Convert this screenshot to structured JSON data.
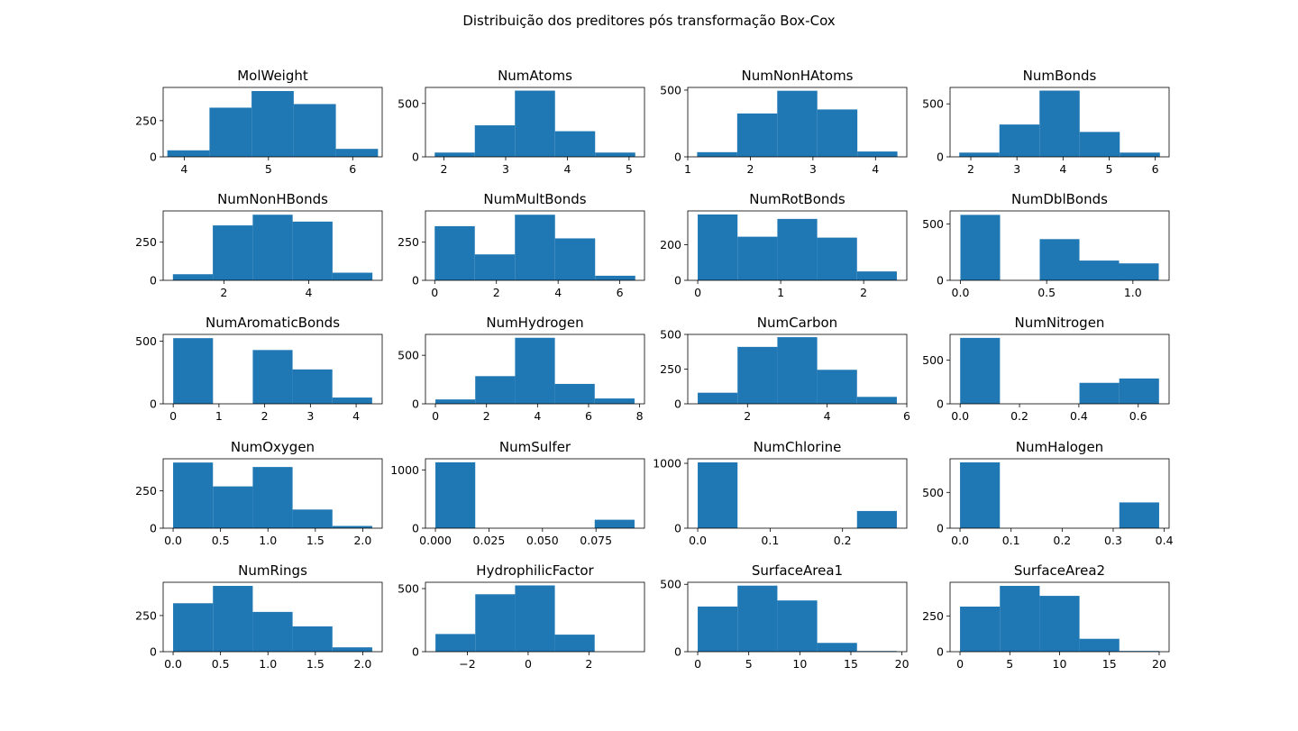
{
  "figure": {
    "title": "Distribuição dos preditores pós transformação Box-Cox",
    "bar_color": "#1f77b4"
  },
  "chart_data": [
    {
      "type": "bar",
      "title": "MolWeight",
      "edges": [
        3.8,
        4.3,
        4.8,
        5.3,
        5.8,
        6.3
      ],
      "values": [
        45,
        340,
        455,
        365,
        55
      ],
      "xlim": [
        3.75,
        6.35
      ],
      "ylim": [
        0,
        480
      ],
      "xticks": [
        4,
        5,
        6
      ],
      "xtick_labels": [
        "4",
        "5",
        "6"
      ],
      "yticks": [
        0,
        250
      ],
      "ytick_labels": [
        "0",
        "250"
      ]
    },
    {
      "type": "bar",
      "title": "NumAtoms",
      "edges": [
        1.85,
        2.5,
        3.15,
        3.8,
        4.45,
        5.1
      ],
      "values": [
        40,
        295,
        620,
        240,
        40
      ],
      "xlim": [
        1.7,
        5.25
      ],
      "ylim": [
        0,
        650
      ],
      "xticks": [
        2,
        3,
        4,
        5
      ],
      "xtick_labels": [
        "2",
        "3",
        "4",
        "5"
      ],
      "yticks": [
        0,
        500
      ],
      "ytick_labels": [
        "0",
        "500"
      ]
    },
    {
      "type": "bar",
      "title": "NumNonHAtoms",
      "edges": [
        1.15,
        1.79,
        2.43,
        3.07,
        3.71,
        4.35
      ],
      "values": [
        35,
        325,
        495,
        355,
        40
      ],
      "xlim": [
        1.0,
        4.5
      ],
      "ylim": [
        0,
        520
      ],
      "xticks": [
        1,
        2,
        3,
        4
      ],
      "xtick_labels": [
        "1",
        "2",
        "3",
        "4"
      ],
      "yticks": [
        0,
        500
      ],
      "ytick_labels": [
        "0",
        "500"
      ]
    },
    {
      "type": "bar",
      "title": "NumBonds",
      "edges": [
        1.75,
        2.62,
        3.49,
        4.36,
        5.23,
        6.1
      ],
      "values": [
        40,
        305,
        625,
        235,
        40
      ],
      "xlim": [
        1.55,
        6.3
      ],
      "ylim": [
        0,
        655
      ],
      "xticks": [
        2,
        3,
        4,
        5,
        6
      ],
      "xtick_labels": [
        "2",
        "3",
        "4",
        "5",
        "6"
      ],
      "yticks": [
        0,
        500
      ],
      "ytick_labels": [
        "0",
        "500"
      ]
    },
    {
      "type": "bar",
      "title": "NumNonHBonds",
      "edges": [
        0.8,
        1.74,
        2.68,
        3.62,
        4.56,
        5.5
      ],
      "values": [
        40,
        360,
        430,
        385,
        50
      ],
      "xlim": [
        0.57,
        5.73
      ],
      "ylim": [
        0,
        455
      ],
      "xticks": [
        2,
        4
      ],
      "xtick_labels": [
        "2",
        "4"
      ],
      "yticks": [
        0,
        250
      ],
      "ytick_labels": [
        "0",
        "250"
      ]
    },
    {
      "type": "bar",
      "title": "NumMultBonds",
      "edges": [
        0,
        1.3,
        2.6,
        3.9,
        5.2,
        6.5
      ],
      "values": [
        355,
        170,
        430,
        275,
        30
      ],
      "xlim": [
        -0.3,
        6.8
      ],
      "ylim": [
        0,
        455
      ],
      "xticks": [
        0,
        2,
        4,
        6
      ],
      "xtick_labels": [
        "0",
        "2",
        "4",
        "6"
      ],
      "yticks": [
        0,
        250
      ],
      "ytick_labels": [
        "0",
        "250"
      ]
    },
    {
      "type": "bar",
      "title": "NumRotBonds",
      "edges": [
        0,
        0.48,
        0.96,
        1.44,
        1.92,
        2.4
      ],
      "values": [
        370,
        245,
        345,
        240,
        50
      ],
      "xlim": [
        -0.12,
        2.52
      ],
      "ylim": [
        0,
        390
      ],
      "xticks": [
        0,
        1,
        2
      ],
      "xtick_labels": [
        "0",
        "1",
        "2"
      ],
      "yticks": [
        0,
        200
      ],
      "ytick_labels": [
        "0",
        "200"
      ]
    },
    {
      "type": "bar",
      "title": "NumDblBonds",
      "edges": [
        0,
        0.23,
        0.46,
        0.69,
        0.92,
        1.15
      ],
      "values": [
        580,
        0,
        365,
        175,
        150
      ],
      "xlim": [
        -0.06,
        1.21
      ],
      "ylim": [
        0,
        615
      ],
      "xticks": [
        0,
        0.5,
        1
      ],
      "xtick_labels": [
        "0.0",
        "0.5",
        "1.0"
      ],
      "yticks": [
        0,
        500
      ],
      "ytick_labels": [
        "0",
        "500"
      ]
    },
    {
      "type": "bar",
      "title": "NumAromaticBonds",
      "edges": [
        0,
        0.87,
        1.74,
        2.61,
        3.48,
        4.35
      ],
      "values": [
        525,
        0,
        430,
        275,
        50
      ],
      "xlim": [
        -0.22,
        4.57
      ],
      "ylim": [
        0,
        555
      ],
      "xticks": [
        0,
        1,
        2,
        3,
        4
      ],
      "xtick_labels": [
        "0",
        "1",
        "2",
        "3",
        "4"
      ],
      "yticks": [
        0,
        500
      ],
      "ytick_labels": [
        "0",
        "500"
      ]
    },
    {
      "type": "bar",
      "title": "NumHydrogen",
      "edges": [
        0,
        1.56,
        3.12,
        4.68,
        6.24,
        7.8
      ],
      "values": [
        45,
        285,
        680,
        205,
        55
      ],
      "xlim": [
        -0.39,
        8.19
      ],
      "ylim": [
        0,
        715
      ],
      "xticks": [
        0,
        2,
        4,
        6,
        8
      ],
      "xtick_labels": [
        "0",
        "2",
        "4",
        "6",
        "8"
      ],
      "yticks": [
        0,
        500
      ],
      "ytick_labels": [
        "0",
        "500"
      ]
    },
    {
      "type": "bar",
      "title": "NumCarbon",
      "edges": [
        0.75,
        1.75,
        2.75,
        3.75,
        4.75,
        5.75
      ],
      "values": [
        80,
        410,
        480,
        245,
        50
      ],
      "xlim": [
        0.5,
        6.0
      ],
      "ylim": [
        0,
        500
      ],
      "xticks": [
        2,
        4,
        6
      ],
      "xtick_labels": [
        "2",
        "4",
        "6"
      ],
      "yticks": [
        0,
        250,
        500
      ],
      "ytick_labels": [
        "0",
        "250",
        "500"
      ]
    },
    {
      "type": "bar",
      "title": "NumNitrogen",
      "edges": [
        0,
        0.134,
        0.268,
        0.402,
        0.536,
        0.67
      ],
      "values": [
        755,
        0,
        0,
        240,
        290
      ],
      "xlim": [
        -0.034,
        0.704
      ],
      "ylim": [
        0,
        795
      ],
      "xticks": [
        0,
        0.2,
        0.4,
        0.6
      ],
      "xtick_labels": [
        "0.0",
        "0.2",
        "0.4",
        "0.6"
      ],
      "yticks": [
        0,
        500
      ],
      "ytick_labels": [
        "0",
        "500"
      ]
    },
    {
      "type": "bar",
      "title": "NumOxygen",
      "edges": [
        0,
        0.42,
        0.84,
        1.26,
        1.68,
        2.1
      ],
      "values": [
        440,
        280,
        410,
        125,
        15
      ],
      "xlim": [
        -0.105,
        2.205
      ],
      "ylim": [
        0,
        465
      ],
      "xticks": [
        0,
        0.5,
        1,
        1.5,
        2
      ],
      "xtick_labels": [
        "0.0",
        "0.5",
        "1.0",
        "1.5",
        "2.0"
      ],
      "yticks": [
        0,
        250
      ],
      "ytick_labels": [
        "0",
        "250"
      ]
    },
    {
      "type": "bar",
      "title": "NumSulfer",
      "edges": [
        0,
        0.0186,
        0.0372,
        0.0558,
        0.0744,
        0.093
      ],
      "values": [
        1130,
        0,
        0,
        0,
        145
      ],
      "xlim": [
        -0.00465,
        0.09765
      ],
      "ylim": [
        0,
        1190
      ],
      "xticks": [
        0,
        0.025,
        0.05,
        0.075
      ],
      "xtick_labels": [
        "0.000",
        "0.025",
        "0.050",
        "0.075"
      ],
      "yticks": [
        0,
        1000
      ],
      "ytick_labels": [
        "0",
        "1000"
      ]
    },
    {
      "type": "bar",
      "title": "NumChlorine",
      "edges": [
        0,
        0.055,
        0.11,
        0.165,
        0.22,
        0.275
      ],
      "values": [
        1015,
        0,
        0,
        0,
        265
      ],
      "xlim": [
        -0.01375,
        0.28875
      ],
      "ylim": [
        0,
        1070
      ],
      "xticks": [
        0,
        0.1,
        0.2
      ],
      "xtick_labels": [
        "0.0",
        "0.1",
        "0.2"
      ],
      "yticks": [
        0,
        1000
      ],
      "ytick_labels": [
        "0",
        "1000"
      ]
    },
    {
      "type": "bar",
      "title": "NumHalogen",
      "edges": [
        0,
        0.078,
        0.156,
        0.234,
        0.312,
        0.39
      ],
      "values": [
        920,
        0,
        0,
        0,
        360
      ],
      "xlim": [
        -0.0195,
        0.4095
      ],
      "ylim": [
        0,
        970
      ],
      "xticks": [
        0,
        0.1,
        0.2,
        0.3,
        0.4
      ],
      "xtick_labels": [
        "0.0",
        "0.1",
        "0.2",
        "0.3",
        "0.4"
      ],
      "yticks": [
        0,
        500
      ],
      "ytick_labels": [
        "0",
        "500"
      ]
    },
    {
      "type": "bar",
      "title": "NumRings",
      "edges": [
        0,
        0.42,
        0.84,
        1.26,
        1.68,
        2.1
      ],
      "values": [
        335,
        455,
        275,
        175,
        30
      ],
      "xlim": [
        -0.105,
        2.205
      ],
      "ylim": [
        0,
        480
      ],
      "xticks": [
        0,
        0.5,
        1,
        1.5,
        2
      ],
      "xtick_labels": [
        "0.0",
        "0.5",
        "1.0",
        "1.5",
        "2.0"
      ],
      "yticks": [
        0,
        250
      ],
      "ytick_labels": [
        "0",
        "250"
      ]
    },
    {
      "type": "bar",
      "title": "HydrophilicFactor",
      "edges": [
        -3.05,
        -1.74,
        -0.43,
        0.88,
        2.19,
        3.5
      ],
      "values": [
        140,
        455,
        525,
        135,
        0
      ],
      "xlim": [
        -3.38,
        3.83
      ],
      "ylim": [
        0,
        550
      ],
      "xticks": [
        -2,
        0,
        2
      ],
      "xtick_labels": [
        "−2",
        "0",
        "2"
      ],
      "yticks": [
        0,
        500
      ],
      "ytick_labels": [
        "0",
        "500"
      ]
    },
    {
      "type": "bar",
      "title": "SurfaceArea1",
      "edges": [
        0,
        3.9,
        7.8,
        11.7,
        15.6,
        19.5
      ],
      "values": [
        335,
        490,
        380,
        65,
        5
      ],
      "xlim": [
        -0.975,
        20.475
      ],
      "ylim": [
        0,
        515
      ],
      "xticks": [
        0,
        5,
        10,
        15,
        20
      ],
      "xtick_labels": [
        "0",
        "5",
        "10",
        "15",
        "20"
      ],
      "yticks": [
        0,
        500
      ],
      "ytick_labels": [
        "0",
        "500"
      ]
    },
    {
      "type": "bar",
      "title": "SurfaceArea2",
      "edges": [
        0,
        4.0,
        8.0,
        12.0,
        16.0,
        20.0
      ],
      "values": [
        315,
        460,
        390,
        90,
        5
      ],
      "xlim": [
        -1.0,
        21.0
      ],
      "ylim": [
        0,
        485
      ],
      "xticks": [
        0,
        5,
        10,
        15,
        20
      ],
      "xtick_labels": [
        "0",
        "5",
        "10",
        "15",
        "20"
      ],
      "yticks": [
        0,
        250
      ],
      "ytick_labels": [
        "0",
        "250"
      ]
    }
  ]
}
